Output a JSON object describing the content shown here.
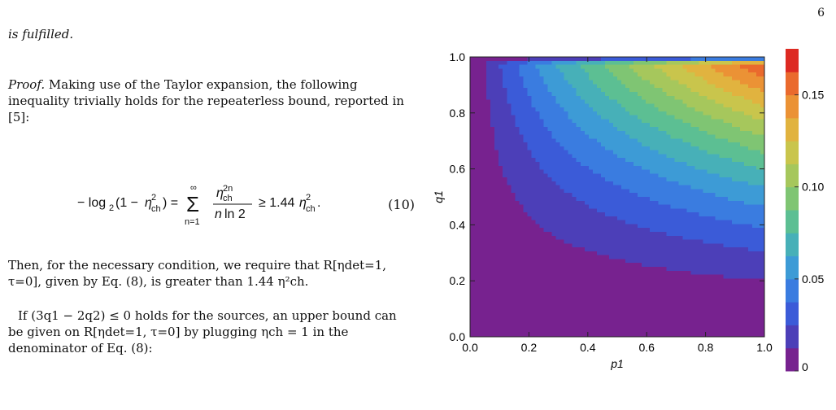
{
  "page": {
    "number": "6"
  },
  "text": {
    "p1": "is fulfilled.",
    "proof_label": "Proof.",
    "proof_body": "Making use of the Taylor expansion, the following inequality trivially holds for the repeaterless bound, reported in [5]:",
    "eq10_number": "(10)",
    "p3": "Then, for the necessary condition, we require that R[ηdet=1, τ=0], given by Eq. (8), is greater than 1.44 η²ch.",
    "p4": "If (3q1 − 2q2) ≤ 0 holds for the sources, an upper bound can be given on R[ηdet=1, τ=0] by plugging ηch = 1 in the denominator of Eq. (8):"
  },
  "chart_data": {
    "type": "contour",
    "xlabel": "p1",
    "ylabel": "q1",
    "xlim": [
      0,
      1
    ],
    "ylim": [
      0,
      1
    ],
    "x_ticks": [
      "0.0",
      "0.2",
      "0.4",
      "0.6",
      "0.8",
      "1.0"
    ],
    "y_ticks": [
      "0.0",
      "0.2",
      "0.4",
      "0.6",
      "0.8",
      "1.0"
    ],
    "colorbar_ticks": [
      "0",
      "0.05",
      "0.10",
      "0.15"
    ],
    "colorbar_range": [
      0,
      0.175
    ],
    "levels": [
      0.0125,
      0.025,
      0.0375,
      0.05,
      0.0625,
      0.075,
      0.0875,
      0.1,
      0.1125,
      0.125,
      0.1375,
      0.15,
      0.1625
    ],
    "colors": [
      "#77228f",
      "#4c3fb8",
      "#3b5bd8",
      "#3a7ce0",
      "#3d9bd6",
      "#47b0b8",
      "#5cbf93",
      "#7fc573",
      "#a6c75c",
      "#c9c54c",
      "#e1b33f",
      "#eb9235",
      "#ea6a2d",
      "#dd2a22"
    ]
  }
}
